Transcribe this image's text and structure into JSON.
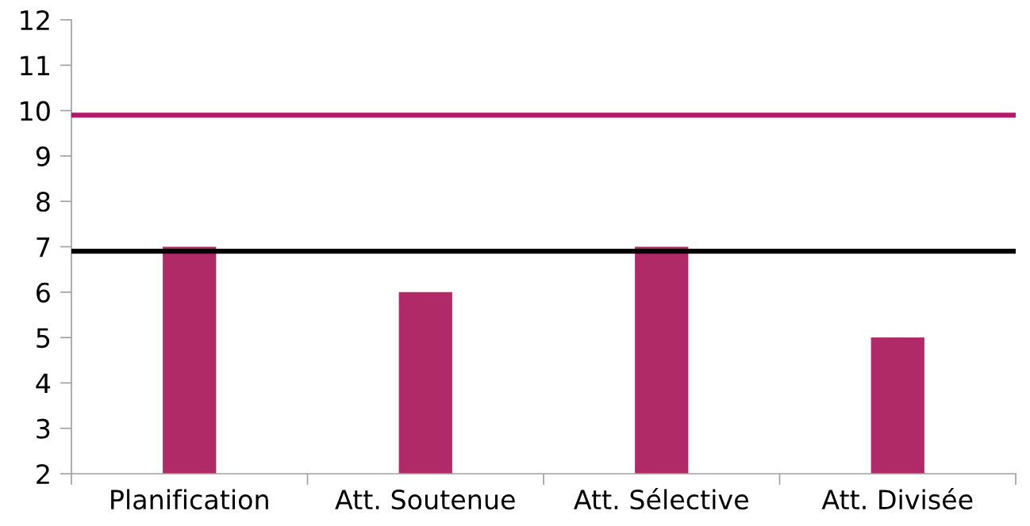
{
  "chart_data": {
    "type": "bar",
    "categories": [
      "Planification",
      "Att. Soutenue",
      "Att. Sélective",
      "Att. Divisée"
    ],
    "values": [
      7,
      6,
      7,
      5
    ],
    "color": "#b02a68",
    "ylim": [
      2,
      12
    ],
    "yticks": [
      2,
      3,
      4,
      5,
      6,
      7,
      8,
      9,
      10,
      11,
      12
    ],
    "ref_lines": [
      {
        "axis": "y",
        "value": 9.9,
        "color": "#b5176a"
      },
      {
        "axis": "y",
        "value": 6.9,
        "color": "#000000"
      }
    ]
  }
}
